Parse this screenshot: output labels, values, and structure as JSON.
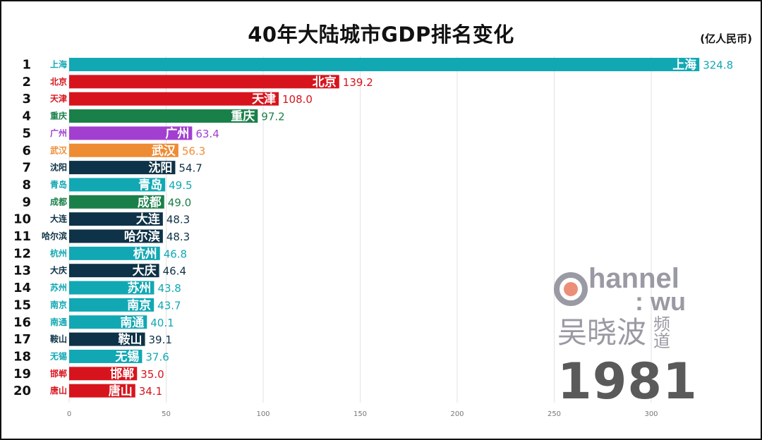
{
  "title": "40年大陆城市GDP排名变化",
  "unit": "(亿人民币)",
  "year": "1981",
  "logo": {
    "channel_text": "hannel",
    "wu_text": ": wu",
    "cn_name": "吴晓波",
    "cn_suffix_1": "频",
    "cn_suffix_2": "道"
  },
  "colors": {
    "teal": "#11a8b4",
    "red": "#d7141d",
    "green": "#1a8049",
    "purple": "#a23fd0",
    "orange": "#ee8c34",
    "navy": "#0e3247"
  },
  "chart_data": {
    "type": "bar",
    "orientation": "horizontal",
    "title": "40年大陆城市GDP排名变化",
    "unit": "(亿人民币)",
    "xlim": [
      0,
      330
    ],
    "xticks": [
      0,
      50,
      100,
      150,
      200,
      250,
      300
    ],
    "grid": true,
    "bars": [
      {
        "rank": "1",
        "city": "上海",
        "value": 324.8,
        "value_label": "324.8",
        "color": "#11a8b4"
      },
      {
        "rank": "2",
        "city": "北京",
        "value": 139.2,
        "value_label": "139.2",
        "color": "#d7141d"
      },
      {
        "rank": "3",
        "city": "天津",
        "value": 108.0,
        "value_label": "108.0",
        "color": "#d7141d"
      },
      {
        "rank": "4",
        "city": "重庆",
        "value": 97.2,
        "value_label": "97.2",
        "color": "#1a8049"
      },
      {
        "rank": "5",
        "city": "广州",
        "value": 63.4,
        "value_label": "63.4",
        "color": "#a23fd0"
      },
      {
        "rank": "6",
        "city": "武汉",
        "value": 56.3,
        "value_label": "56.3",
        "color": "#ee8c34"
      },
      {
        "rank": "7",
        "city": "沈阳",
        "value": 54.7,
        "value_label": "54.7",
        "color": "#0e3247"
      },
      {
        "rank": "8",
        "city": "青岛",
        "value": 49.5,
        "value_label": "49.5",
        "color": "#11a8b4"
      },
      {
        "rank": "9",
        "city": "成都",
        "value": 49.0,
        "value_label": "49.0",
        "color": "#1a8049"
      },
      {
        "rank": "10",
        "city": "大连",
        "value": 48.3,
        "value_label": "48.3",
        "color": "#0e3247"
      },
      {
        "rank": "11",
        "city": "哈尔滨",
        "value": 48.3,
        "value_label": "48.3",
        "color": "#0e3247"
      },
      {
        "rank": "12",
        "city": "杭州",
        "value": 46.8,
        "value_label": "46.8",
        "color": "#11a8b4"
      },
      {
        "rank": "13",
        "city": "大庆",
        "value": 46.4,
        "value_label": "46.4",
        "color": "#0e3247"
      },
      {
        "rank": "14",
        "city": "苏州",
        "value": 43.8,
        "value_label": "43.8",
        "color": "#11a8b4"
      },
      {
        "rank": "15",
        "city": "南京",
        "value": 43.7,
        "value_label": "43.7",
        "color": "#11a8b4"
      },
      {
        "rank": "16",
        "city": "南通",
        "value": 40.1,
        "value_label": "40.1",
        "color": "#11a8b4"
      },
      {
        "rank": "17",
        "city": "鞍山",
        "value": 39.1,
        "value_label": "39.1",
        "color": "#0e3247"
      },
      {
        "rank": "18",
        "city": "无锡",
        "value": 37.6,
        "value_label": "37.6",
        "color": "#11a8b4"
      },
      {
        "rank": "19",
        "city": "邯郸",
        "value": 35.0,
        "value_label": "35.0",
        "color": "#d7141d"
      },
      {
        "rank": "20",
        "city": "唐山",
        "value": 34.1,
        "value_label": "34.1",
        "color": "#d7141d"
      }
    ]
  }
}
